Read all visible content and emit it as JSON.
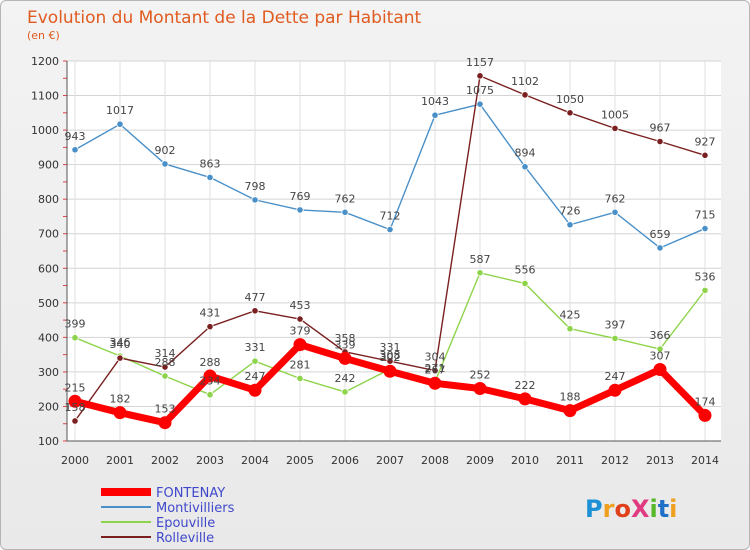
{
  "chart_data": {
    "type": "line",
    "title": "Evolution du Montant de la Dette par Habitant",
    "subtitle": "(en €)",
    "xlabel": "",
    "ylabel": "",
    "ylim": [
      100,
      1200
    ],
    "y_ticks": [
      100,
      200,
      300,
      400,
      500,
      600,
      700,
      800,
      900,
      1000,
      1100,
      1200
    ],
    "grid": true,
    "legend_position": "bottom-left",
    "categories": [
      "2000",
      "2001",
      "2002",
      "2003",
      "2004",
      "2005",
      "2006",
      "2007",
      "2008",
      "2009",
      "2010",
      "2011",
      "2012",
      "2013",
      "2014"
    ],
    "series": [
      {
        "name": "FONTENAY",
        "color": "#ff0000",
        "values": [
          215,
          182,
          153,
          288,
          247,
          379,
          339,
          302,
          267,
          252,
          222,
          188,
          247,
          307,
          174
        ]
      },
      {
        "name": "Montivilliers",
        "color": "#4a90c8",
        "values": [
          943,
          1017,
          902,
          863,
          798,
          769,
          762,
          712,
          1043,
          1075,
          894,
          726,
          762,
          659,
          715
        ]
      },
      {
        "name": "Epouville",
        "color": "#8ed44a",
        "values": [
          399,
          346,
          288,
          234,
          331,
          281,
          242,
          308,
          271,
          587,
          556,
          425,
          397,
          366,
          536
        ]
      },
      {
        "name": "Rolleville",
        "color": "#7a2020",
        "values": [
          158,
          340,
          314,
          431,
          477,
          453,
          358,
          331,
          304,
          1157,
          1102,
          1050,
          1005,
          967,
          927
        ]
      }
    ]
  },
  "brand": {
    "name": "ProXiti"
  }
}
